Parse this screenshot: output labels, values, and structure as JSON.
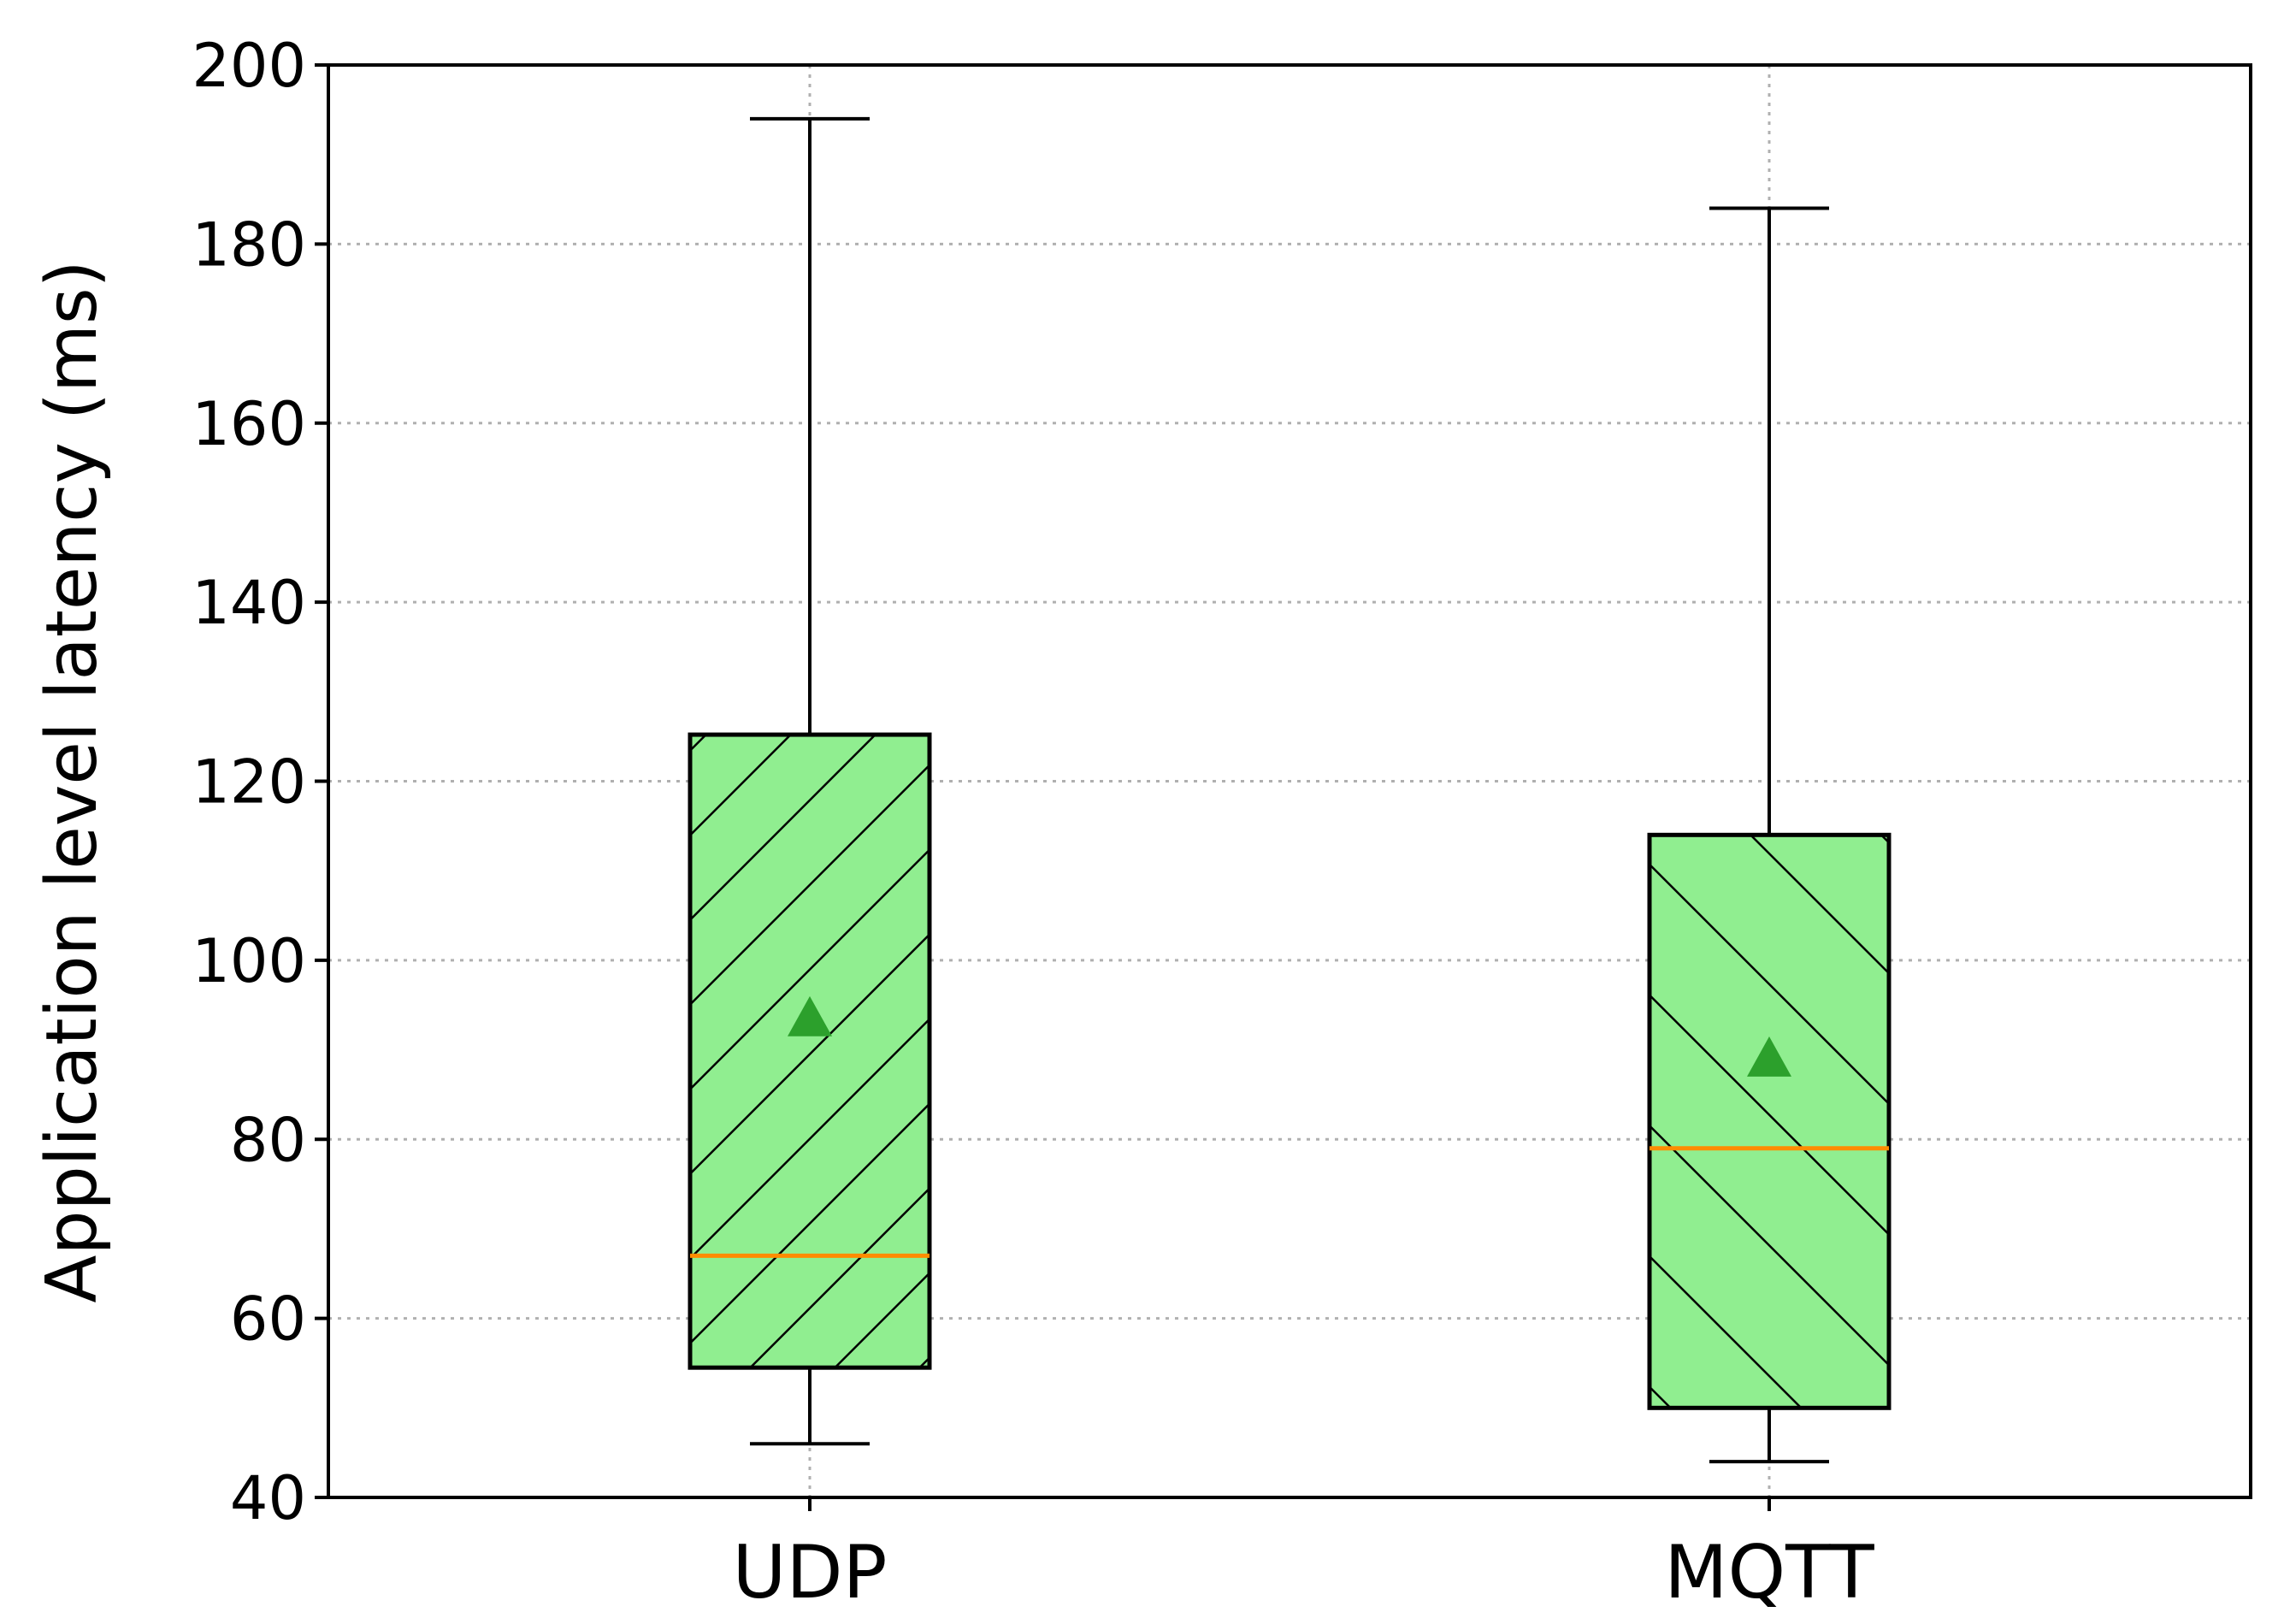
{
  "chart_data": {
    "type": "box",
    "title": "",
    "xlabel": "",
    "ylabel": "Application level latency (ms)",
    "ylim": [
      40,
      200
    ],
    "yticks": [
      40,
      60,
      80,
      100,
      120,
      140,
      160,
      180,
      200
    ],
    "grid": true,
    "categories": [
      "UDP",
      "MQTT"
    ],
    "boxes": [
      {
        "category": "UDP",
        "whisker_low": 46,
        "q1": 54.5,
        "median": 67,
        "mean": 93.5,
        "q3": 125.2,
        "whisker_high": 194,
        "hatch": "forward-diagonal"
      },
      {
        "category": "MQTT",
        "whisker_low": 44,
        "q1": 50,
        "median": 79,
        "mean": 89,
        "q3": 114,
        "whisker_high": 184,
        "hatch": "back-diagonal"
      }
    ],
    "colors": {
      "box_fill": "#90ee90",
      "median": "#ff8c00",
      "mean_marker": "#2ca02c",
      "grid": "#b0b0b0",
      "line": "#000000"
    }
  }
}
